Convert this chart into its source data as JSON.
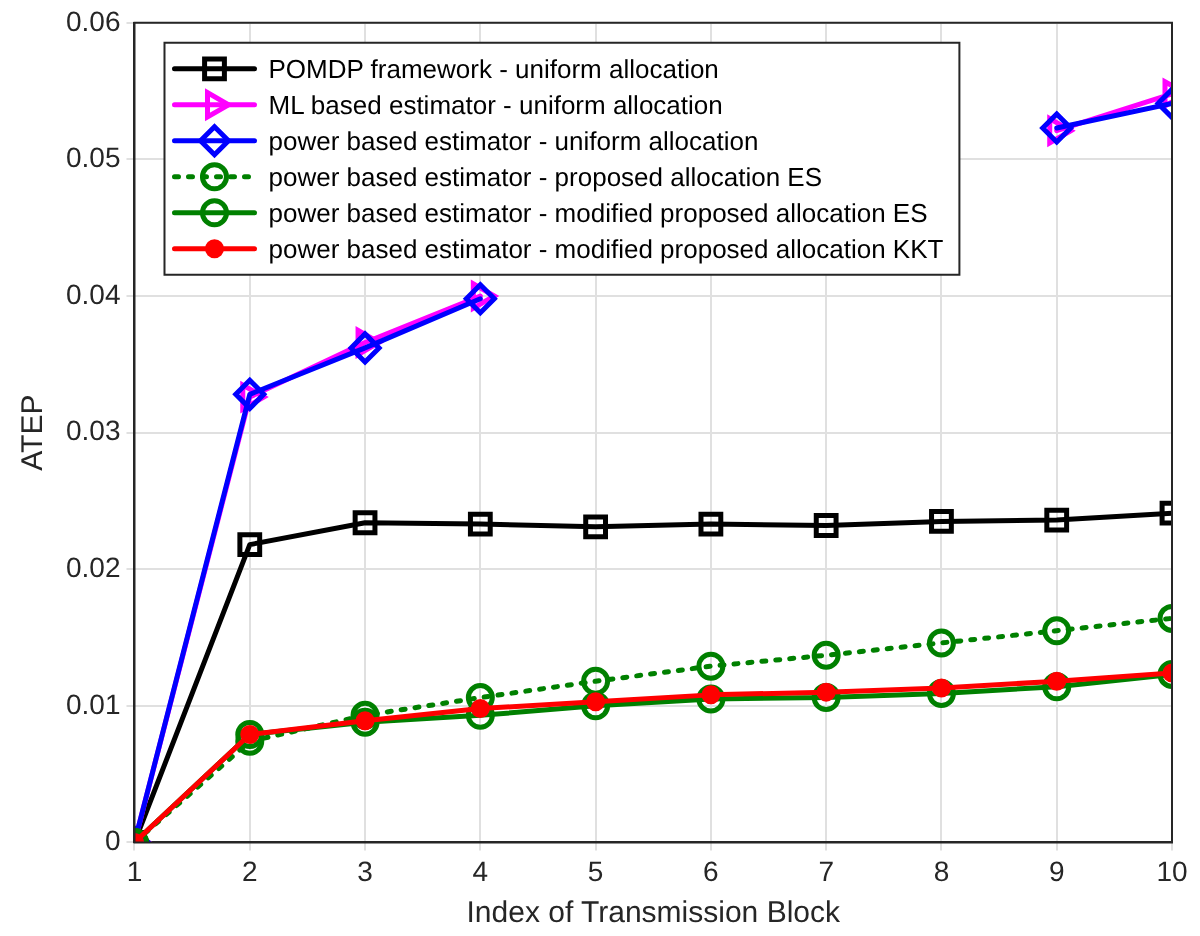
{
  "chart_data": {
    "type": "line",
    "xlabel": "Index of Transmission Block",
    "ylabel": "ATEP",
    "x": [
      1,
      2,
      3,
      4,
      5,
      6,
      7,
      8,
      9,
      10
    ],
    "xlim": [
      1,
      10
    ],
    "xticks": [
      1,
      2,
      3,
      4,
      5,
      6,
      7,
      8,
      9,
      10
    ],
    "ylim": [
      0,
      0.06
    ],
    "yticks": [
      0,
      0.01,
      0.02,
      0.03,
      0.04,
      0.05,
      0.06
    ],
    "grid": true,
    "legend": "top left",
    "series": [
      {
        "name": "POMDP framework - uniform allocation",
        "color": "#000000",
        "marker": "square",
        "line_style": "solid",
        "values": [
          0,
          0.0218,
          0.0234,
          0.0233,
          0.0231,
          0.0233,
          0.0232,
          0.0235,
          0.0236,
          0.0241
        ]
      },
      {
        "name": "ML based estimator - uniform allocation",
        "color": "#ff00ff",
        "marker": "triangle",
        "line_style": "solid",
        "values": [
          0,
          0.0326,
          0.0366,
          0.04,
          null,
          null,
          null,
          null,
          0.0521,
          0.0548
        ]
      },
      {
        "name": "power based estimator - uniform allocation",
        "color": "#0000ff",
        "marker": "diamond",
        "line_style": "solid",
        "values": [
          0,
          0.0328,
          0.0362,
          0.0398,
          null,
          null,
          null,
          null,
          0.0523,
          0.0541
        ]
      },
      {
        "name": "power based estimator - proposed allocation ES",
        "color": "#008000",
        "marker": "circle",
        "line_style": "dotted",
        "values": [
          0,
          0.0074,
          0.0093,
          0.0106,
          0.0118,
          0.0129,
          0.0137,
          0.0146,
          0.0155,
          0.0164
        ]
      },
      {
        "name": "power based estimator - modified proposed allocation ES",
        "color": "#008000",
        "marker": "circle",
        "line_style": "solid",
        "values": [
          0,
          0.0079,
          0.0088,
          0.0093,
          0.01,
          0.0105,
          0.0106,
          0.0109,
          0.0114,
          0.0123
        ]
      },
      {
        "name": "power based estimator - modified proposed allocation KKT",
        "color": "#ff0000",
        "marker": "dot",
        "line_style": "solid",
        "values": [
          0,
          0.0079,
          0.0089,
          0.0098,
          0.0103,
          0.0108,
          0.011,
          0.0113,
          0.0118,
          0.0124
        ]
      }
    ]
  }
}
